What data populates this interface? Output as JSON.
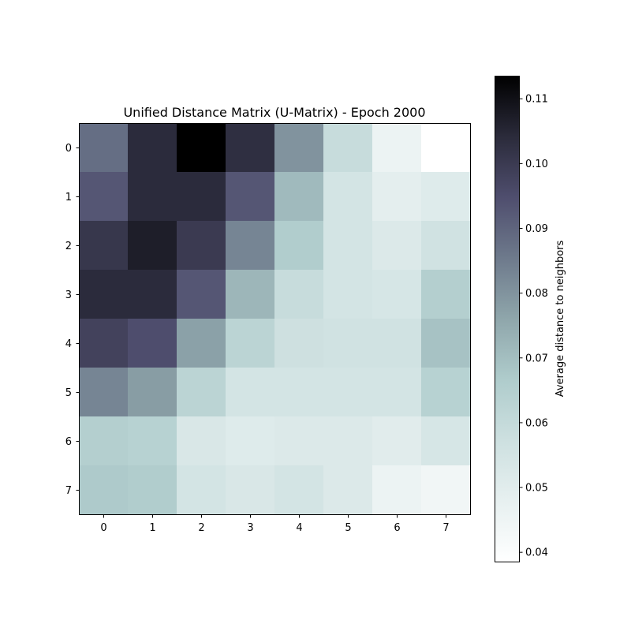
{
  "chart_data": {
    "type": "heatmap",
    "title": "Unified Distance Matrix (U-Matrix) - Epoch 2000",
    "xlabel": "",
    "ylabel": "",
    "x_ticks": [
      "0",
      "1",
      "2",
      "3",
      "4",
      "5",
      "6",
      "7"
    ],
    "y_ticks": [
      "0",
      "1",
      "2",
      "3",
      "4",
      "5",
      "6",
      "7"
    ],
    "colormap": "bone_r",
    "vmin": 0.0385,
    "vmax": 0.1135,
    "colorbar": {
      "label": "Average distance to neighbors",
      "ticks": [
        0.04,
        0.05,
        0.06,
        0.07,
        0.08,
        0.09,
        0.1,
        0.11
      ],
      "tick_labels": [
        "0.04",
        "0.05",
        "0.06",
        "0.07",
        "0.08",
        "0.09",
        "0.10",
        "0.11"
      ]
    },
    "values": [
      [
        0.088,
        0.104,
        0.1135,
        0.103,
        0.08,
        0.059,
        0.046,
        0.0385
      ],
      [
        0.093,
        0.104,
        0.104,
        0.093,
        0.071,
        0.055,
        0.049,
        0.051
      ],
      [
        0.101,
        0.107,
        0.1,
        0.083,
        0.066,
        0.055,
        0.052,
        0.056
      ],
      [
        0.104,
        0.104,
        0.093,
        0.072,
        0.059,
        0.055,
        0.054,
        0.065
      ],
      [
        0.098,
        0.095,
        0.077,
        0.063,
        0.057,
        0.056,
        0.056,
        0.069
      ],
      [
        0.083,
        0.078,
        0.063,
        0.055,
        0.055,
        0.055,
        0.055,
        0.064
      ],
      [
        0.065,
        0.064,
        0.053,
        0.051,
        0.052,
        0.052,
        0.05,
        0.054
      ],
      [
        0.067,
        0.066,
        0.055,
        0.053,
        0.055,
        0.052,
        0.046,
        0.044
      ]
    ]
  }
}
